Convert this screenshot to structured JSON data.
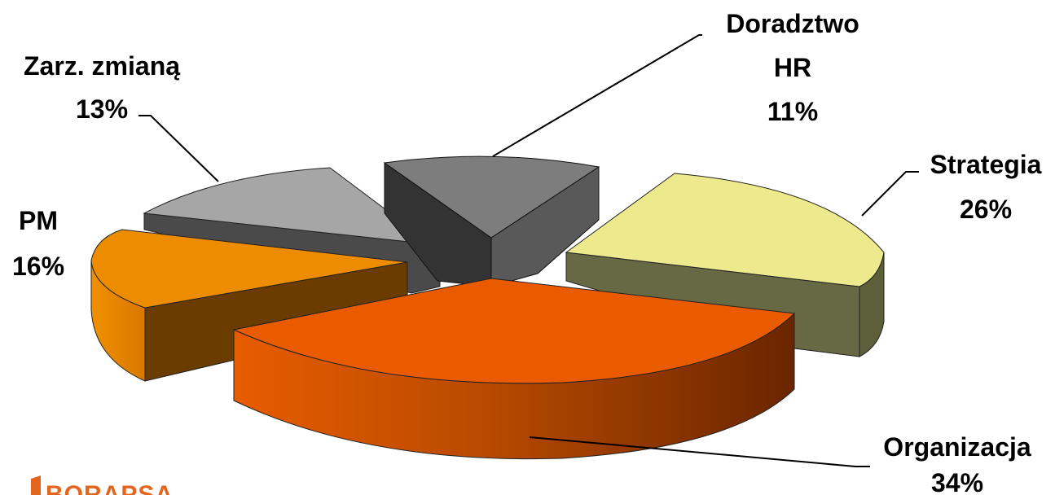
{
  "chart_data": {
    "type": "pie",
    "style": "3d-exploded",
    "slices": [
      {
        "label": "Organizacja",
        "value": 34,
        "value_label": "34%",
        "color": "#e65c00"
      },
      {
        "label": "Strategia",
        "value": 26,
        "value_label": "26%",
        "color": "#ecea8c"
      },
      {
        "label": "Doradztwo HR",
        "label_lines": [
          "Doradztwo",
          "HR"
        ],
        "value": 11,
        "value_label": "11%",
        "color": "#7d7d7d"
      },
      {
        "label": "Zarz. zmianą",
        "value": 13,
        "value_label": "13%",
        "color": "#a6a6a6"
      },
      {
        "label": "PM",
        "value": 16,
        "value_label": "16%",
        "color": "#ee8c00"
      }
    ]
  },
  "logo": {
    "text": "BORAPSA",
    "color": "#e4661e"
  }
}
